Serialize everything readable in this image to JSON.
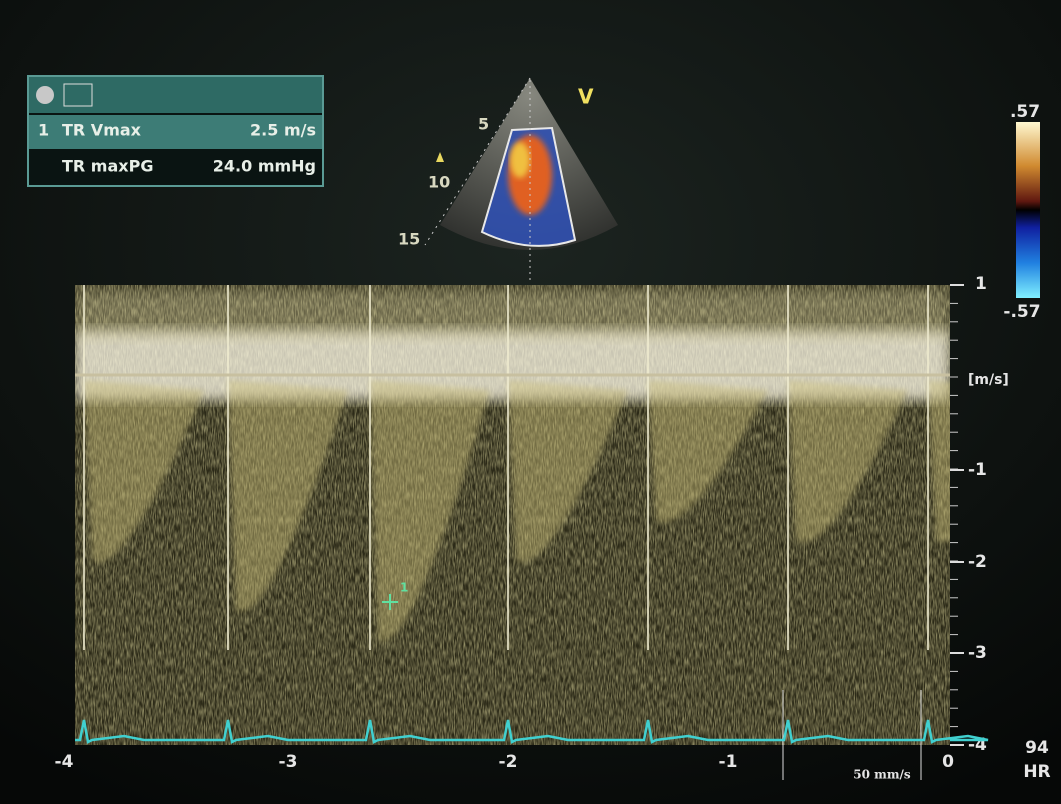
{
  "measurement_panel": {
    "index": "1",
    "rows": [
      {
        "label": "TR Vmax",
        "value": "2.5 m/s"
      },
      {
        "label": "TR maxPG",
        "value": "24.0 mmHg"
      }
    ]
  },
  "sector": {
    "mode": "V",
    "depth_marks": [
      "5",
      "10",
      "15"
    ]
  },
  "color_scale": {
    "max": ".57",
    "min": "-.57"
  },
  "velocity_axis": {
    "unit": "[m/s]",
    "ticks": [
      "1",
      "-1",
      "-2",
      "-3",
      "-4"
    ]
  },
  "time_axis": {
    "ticks": [
      "-4",
      "-3",
      "-2",
      "-1",
      "0"
    ]
  },
  "sweep_speed": "50 mm/s",
  "cursor_label": "1",
  "heart_rate": {
    "value": "94",
    "label": "HR"
  }
}
